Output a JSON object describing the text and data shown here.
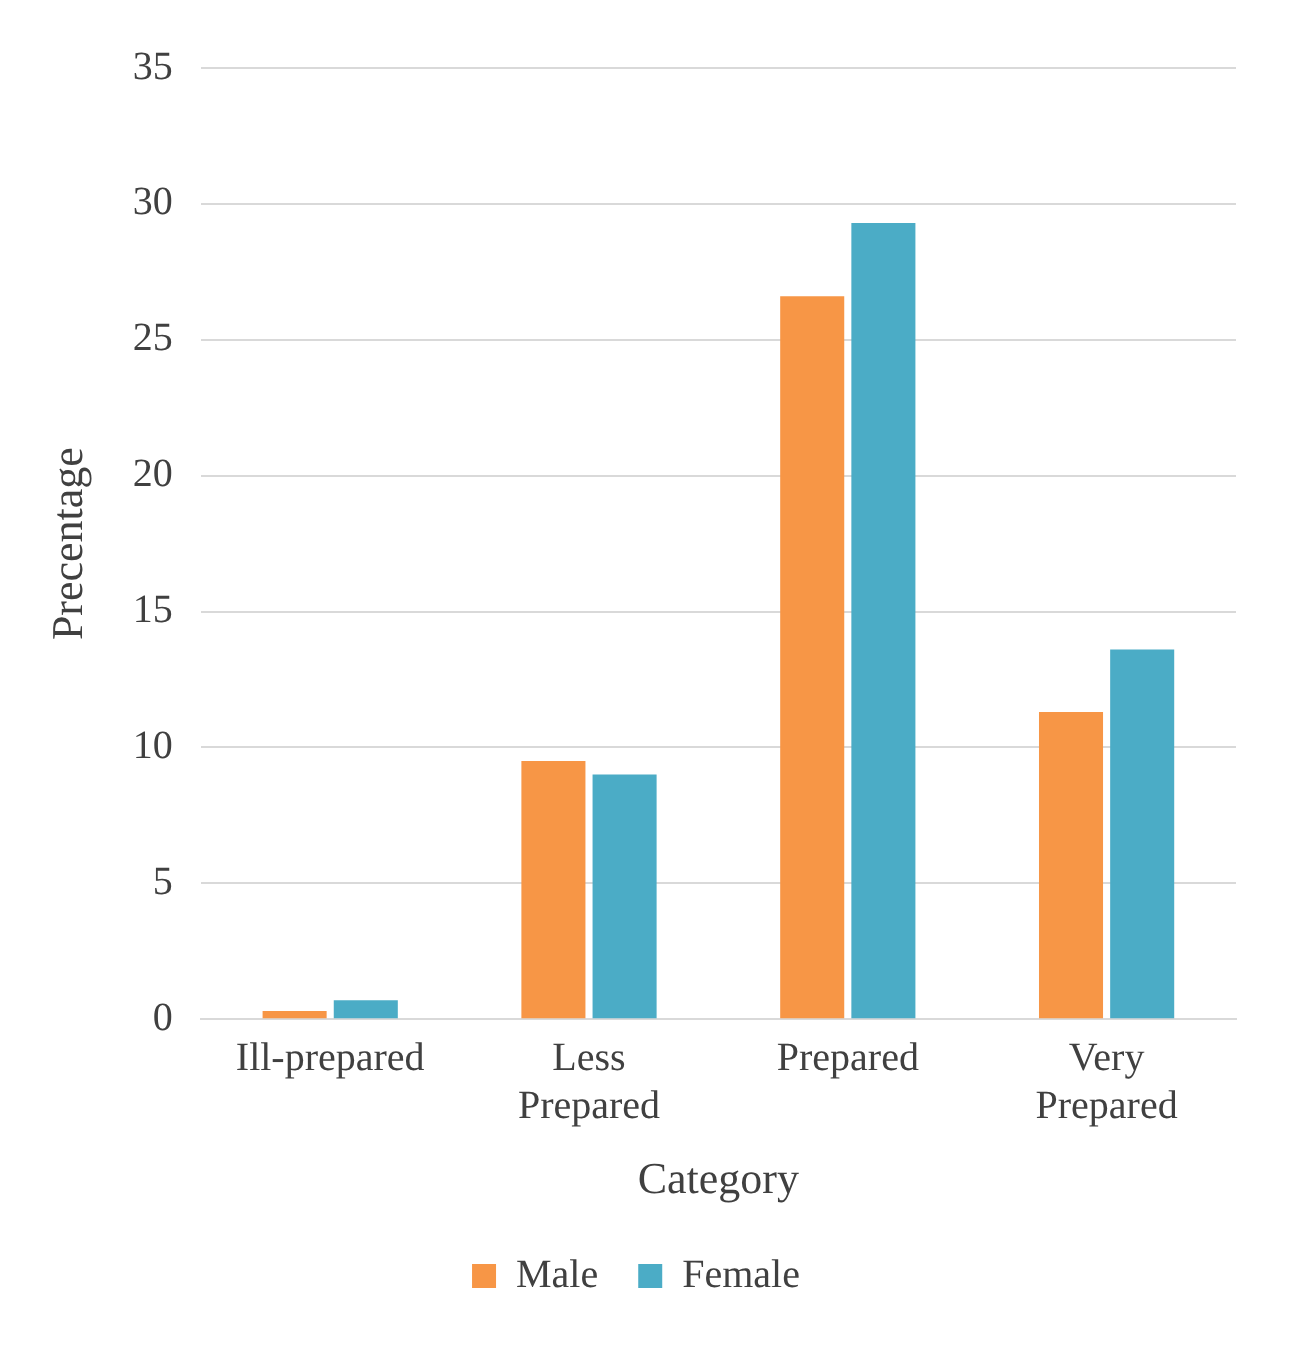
{
  "chart_data": {
    "type": "bar",
    "xlabel": "Category",
    "ylabel": "Precentage",
    "categories": [
      "Ill-prepared",
      "Less Prepared",
      "Prepared",
      "Very Prepared"
    ],
    "series": [
      {
        "name": "Male",
        "color": "#f79646",
        "values": [
          0.3,
          9.5,
          26.6,
          11.3
        ]
      },
      {
        "name": "Female",
        "color": "#4bacc6",
        "values": [
          0.7,
          9.0,
          29.3,
          13.6
        ]
      }
    ],
    "ylim": [
      0,
      35
    ],
    "yticks": [
      0,
      5,
      10,
      15,
      20,
      25,
      30,
      35
    ],
    "grid": "y",
    "legend": "bottom"
  }
}
